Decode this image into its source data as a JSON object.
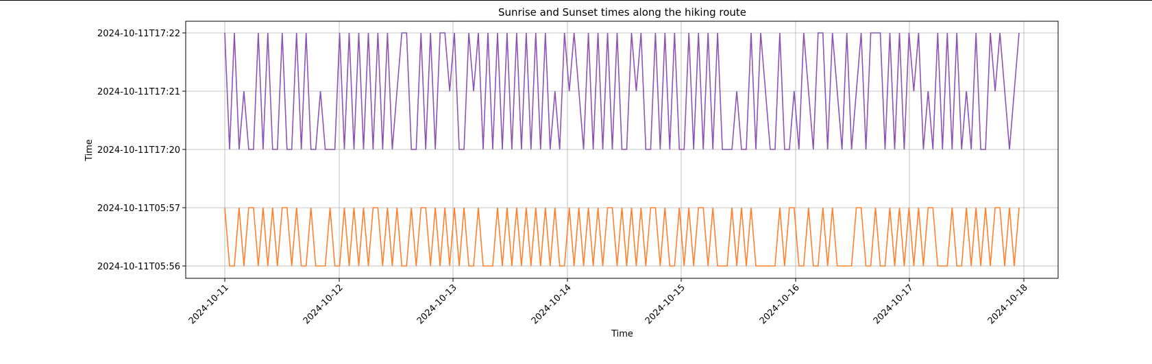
{
  "chart_data": {
    "type": "line",
    "title": "Sunrise and Sunset times along the hiking route",
    "xlabel": "Time",
    "ylabel": "Time",
    "x_ticks": [
      "2024-10-11",
      "2024-10-12",
      "2024-10-13",
      "2024-10-14",
      "2024-10-15",
      "2024-10-16",
      "2024-10-17",
      "2024-10-18"
    ],
    "y_ticks": [
      "2024-10-11T05:56",
      "2024-10-11T05:57",
      "2024-10-11T17:20",
      "2024-10-11T17:21",
      "2024-10-11T17:22"
    ],
    "grid": true,
    "x_range": [
      "2024-10-11",
      "2024-10-17T23:00"
    ],
    "series": [
      {
        "color": "#ff7f2a",
        "range": [
          "2024-10-11T05:56",
          "2024-10-11T05:57"
        ],
        "pattern": "jagged oscillation, mostly sharp spikes with short plateaus",
        "points": 167
      },
      {
        "color": "#8c52b8",
        "range": [
          "2024-10-11T17:20",
          "2024-10-11T17:22"
        ],
        "pattern": "jagged oscillation between 17:20 and 17:22 with stops at 17:21",
        "points": 167
      }
    ]
  }
}
